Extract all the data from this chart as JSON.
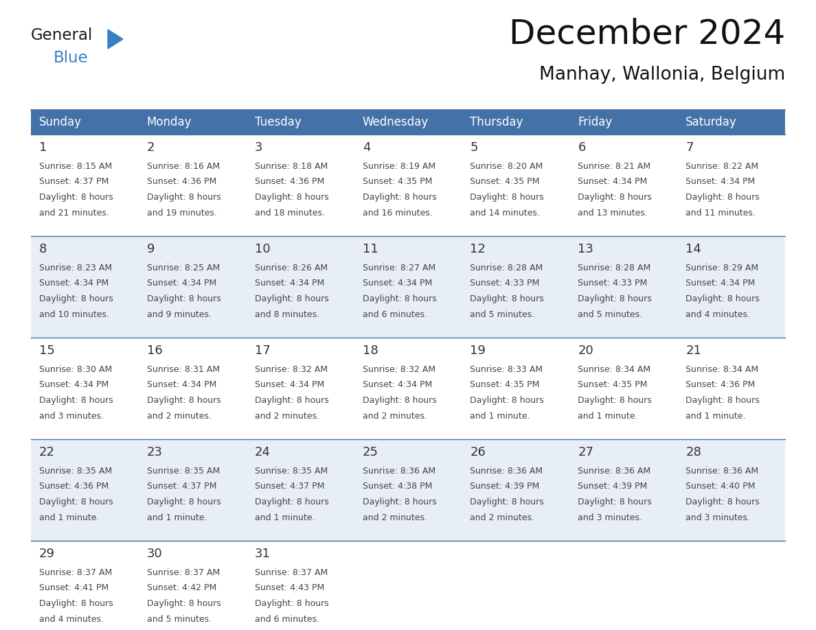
{
  "title": "December 2024",
  "subtitle": "Manhay, Wallonia, Belgium",
  "header_bg": "#4472a8",
  "header_text_color": "#ffffff",
  "header_days": [
    "Sunday",
    "Monday",
    "Tuesday",
    "Wednesday",
    "Thursday",
    "Friday",
    "Saturday"
  ],
  "cell_bg_even": "#ffffff",
  "cell_bg_odd": "#e8eef5",
  "day_num_color": "#333333",
  "text_color": "#444444",
  "grid_color": "#4472a8",
  "logo_general_color": "#1a1a1a",
  "logo_blue_color": "#3a7fc1",
  "logo_triangle_color": "#3a7fc1",
  "weeks": [
    [
      {
        "day": 1,
        "sunrise": "8:15 AM",
        "sunset": "4:37 PM",
        "daylight": "8 hours and 21 minutes."
      },
      {
        "day": 2,
        "sunrise": "8:16 AM",
        "sunset": "4:36 PM",
        "daylight": "8 hours and 19 minutes."
      },
      {
        "day": 3,
        "sunrise": "8:18 AM",
        "sunset": "4:36 PM",
        "daylight": "8 hours and 18 minutes."
      },
      {
        "day": 4,
        "sunrise": "8:19 AM",
        "sunset": "4:35 PM",
        "daylight": "8 hours and 16 minutes."
      },
      {
        "day": 5,
        "sunrise": "8:20 AM",
        "sunset": "4:35 PM",
        "daylight": "8 hours and 14 minutes."
      },
      {
        "day": 6,
        "sunrise": "8:21 AM",
        "sunset": "4:34 PM",
        "daylight": "8 hours and 13 minutes."
      },
      {
        "day": 7,
        "sunrise": "8:22 AM",
        "sunset": "4:34 PM",
        "daylight": "8 hours and 11 minutes."
      }
    ],
    [
      {
        "day": 8,
        "sunrise": "8:23 AM",
        "sunset": "4:34 PM",
        "daylight": "8 hours and 10 minutes."
      },
      {
        "day": 9,
        "sunrise": "8:25 AM",
        "sunset": "4:34 PM",
        "daylight": "8 hours and 9 minutes."
      },
      {
        "day": 10,
        "sunrise": "8:26 AM",
        "sunset": "4:34 PM",
        "daylight": "8 hours and 8 minutes."
      },
      {
        "day": 11,
        "sunrise": "8:27 AM",
        "sunset": "4:34 PM",
        "daylight": "8 hours and 6 minutes."
      },
      {
        "day": 12,
        "sunrise": "8:28 AM",
        "sunset": "4:33 PM",
        "daylight": "8 hours and 5 minutes."
      },
      {
        "day": 13,
        "sunrise": "8:28 AM",
        "sunset": "4:33 PM",
        "daylight": "8 hours and 5 minutes."
      },
      {
        "day": 14,
        "sunrise": "8:29 AM",
        "sunset": "4:34 PM",
        "daylight": "8 hours and 4 minutes."
      }
    ],
    [
      {
        "day": 15,
        "sunrise": "8:30 AM",
        "sunset": "4:34 PM",
        "daylight": "8 hours and 3 minutes."
      },
      {
        "day": 16,
        "sunrise": "8:31 AM",
        "sunset": "4:34 PM",
        "daylight": "8 hours and 2 minutes."
      },
      {
        "day": 17,
        "sunrise": "8:32 AM",
        "sunset": "4:34 PM",
        "daylight": "8 hours and 2 minutes."
      },
      {
        "day": 18,
        "sunrise": "8:32 AM",
        "sunset": "4:34 PM",
        "daylight": "8 hours and 2 minutes."
      },
      {
        "day": 19,
        "sunrise": "8:33 AM",
        "sunset": "4:35 PM",
        "daylight": "8 hours and 1 minute."
      },
      {
        "day": 20,
        "sunrise": "8:34 AM",
        "sunset": "4:35 PM",
        "daylight": "8 hours and 1 minute."
      },
      {
        "day": 21,
        "sunrise": "8:34 AM",
        "sunset": "4:36 PM",
        "daylight": "8 hours and 1 minute."
      }
    ],
    [
      {
        "day": 22,
        "sunrise": "8:35 AM",
        "sunset": "4:36 PM",
        "daylight": "8 hours and 1 minute."
      },
      {
        "day": 23,
        "sunrise": "8:35 AM",
        "sunset": "4:37 PM",
        "daylight": "8 hours and 1 minute."
      },
      {
        "day": 24,
        "sunrise": "8:35 AM",
        "sunset": "4:37 PM",
        "daylight": "8 hours and 1 minute."
      },
      {
        "day": 25,
        "sunrise": "8:36 AM",
        "sunset": "4:38 PM",
        "daylight": "8 hours and 2 minutes."
      },
      {
        "day": 26,
        "sunrise": "8:36 AM",
        "sunset": "4:39 PM",
        "daylight": "8 hours and 2 minutes."
      },
      {
        "day": 27,
        "sunrise": "8:36 AM",
        "sunset": "4:39 PM",
        "daylight": "8 hours and 3 minutes."
      },
      {
        "day": 28,
        "sunrise": "8:36 AM",
        "sunset": "4:40 PM",
        "daylight": "8 hours and 3 minutes."
      }
    ],
    [
      {
        "day": 29,
        "sunrise": "8:37 AM",
        "sunset": "4:41 PM",
        "daylight": "8 hours and 4 minutes."
      },
      {
        "day": 30,
        "sunrise": "8:37 AM",
        "sunset": "4:42 PM",
        "daylight": "8 hours and 5 minutes."
      },
      {
        "day": 31,
        "sunrise": "8:37 AM",
        "sunset": "4:43 PM",
        "daylight": "8 hours and 6 minutes."
      },
      null,
      null,
      null,
      null
    ]
  ],
  "figsize": [
    11.88,
    9.18
  ],
  "dpi": 100
}
